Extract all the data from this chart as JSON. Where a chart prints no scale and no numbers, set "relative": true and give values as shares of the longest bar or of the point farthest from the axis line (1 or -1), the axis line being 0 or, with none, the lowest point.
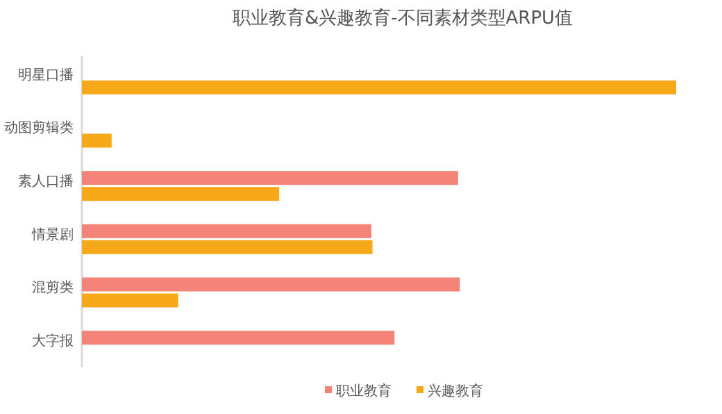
{
  "chart_data": {
    "type": "bar",
    "orientation": "horizontal",
    "relative": true,
    "title": "职业教育&兴趣教育-不同素材类型ARPU值",
    "categories": [
      "明星口播",
      "动图剪辑类",
      "素人口播",
      "情景剧",
      "混剪类",
      "大字报"
    ],
    "series": [
      {
        "name": "职业教育",
        "color": "#f4847a",
        "values": [
          null,
          null,
          0.633,
          0.487,
          0.636,
          0.526
        ]
      },
      {
        "name": "兴趣教育",
        "color": "#f7a818",
        "values": [
          1,
          0.05,
          0.332,
          0.489,
          0.162,
          null
        ]
      }
    ],
    "legend": "bottom"
  }
}
